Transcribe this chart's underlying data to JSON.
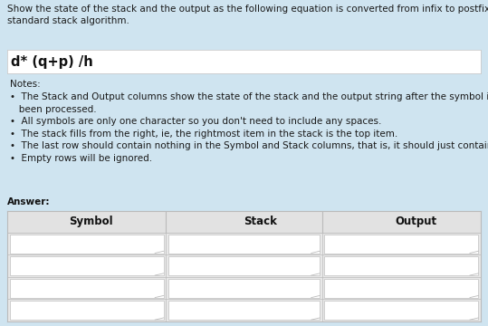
{
  "title_line1": "Show the state of the stack and the output as the following equation is converted from infix to postfix using the",
  "title_line2": "standard stack algorithm.",
  "equation": "d* (q+p) /h",
  "notes_title": "Notes:",
  "notes": [
    "The Stack and Output columns show the state of the stack and the output string after the symbol in that row has",
    "    been processed.",
    "All symbols are only one character so you don't need to include any spaces.",
    "The stack fills from the right, ie, the rightmost item in the stack is the top item.",
    "The last row should contain nothing in the Symbol and Stack columns, that is, it should just contain the final output.",
    "Empty rows will be ignored."
  ],
  "answer_label": "Answer:",
  "col_headers": [
    "Symbol",
    "Stack",
    "Output"
  ],
  "num_rows": 4,
  "bg_color": "#cfe4f0",
  "table_outer_bg": "#e8e8e8",
  "header_bg": "#e2e2e2",
  "cell_bg": "#ffffff",
  "border_color": "#bbbbbb",
  "equation_bg": "#ffffff",
  "title_fontsize": 7.5,
  "equation_fontsize": 10.5,
  "notes_fontsize": 7.5,
  "header_fontsize": 8.5
}
